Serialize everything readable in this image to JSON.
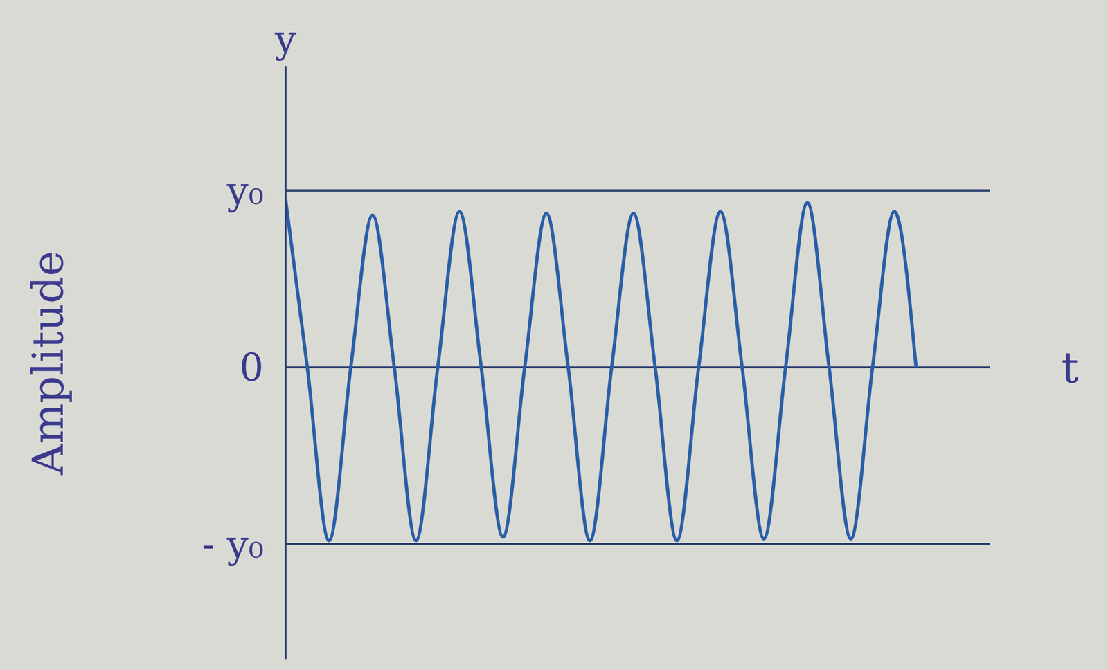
{
  "chart_data": {
    "type": "line",
    "axis_name": "y",
    "ylabel": "Amplitude",
    "xlabel": "t",
    "x": [
      0,
      0.25,
      0.5,
      0.75,
      1,
      1.25,
      1.5,
      1.75,
      2,
      2.25,
      2.5,
      2.75,
      3,
      3.25,
      3.5,
      3.75,
      4,
      4.25,
      4.5,
      4.75,
      5,
      5.25,
      5.5,
      5.75,
      6,
      6.25,
      6.5,
      6.75,
      7,
      7.25
    ],
    "values": [
      0.95,
      0,
      -0.98,
      0,
      0.86,
      0,
      -0.98,
      0,
      0.88,
      0,
      -0.96,
      0,
      0.87,
      0,
      -0.98,
      0,
      0.87,
      0,
      -0.98,
      0,
      0.88,
      0,
      -0.97,
      0,
      0.93,
      0,
      -0.97,
      0,
      0.88,
      0
    ],
    "color": "#2a5ea8",
    "xlim": [
      0,
      8.1
    ],
    "ylim": [
      -1.65,
      1.7
    ],
    "yticks": [
      {
        "value": 1,
        "label": "y₀"
      },
      0,
      {
        "value": -1,
        "label": "- y₀"
      }
    ],
    "tick_labels": "y",
    "grid": false,
    "line_style": "solid"
  }
}
